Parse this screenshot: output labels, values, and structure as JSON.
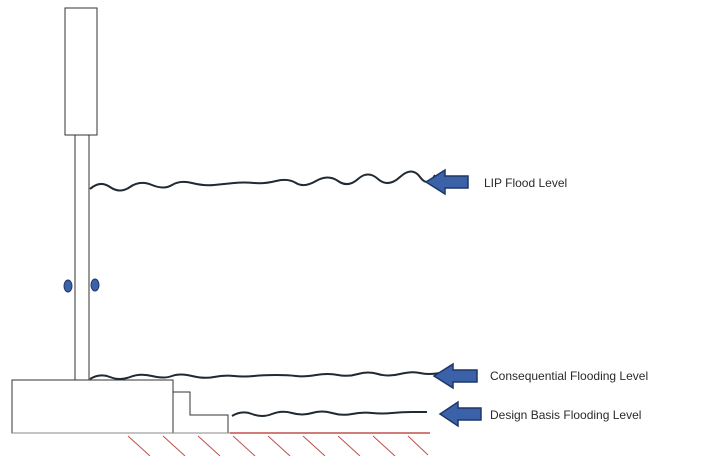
{
  "levels": [
    {
      "label": "LIP Flood Level"
    },
    {
      "label": "Consequential Flooding Level"
    },
    {
      "label": "Design Basis Flooding Level"
    }
  ]
}
